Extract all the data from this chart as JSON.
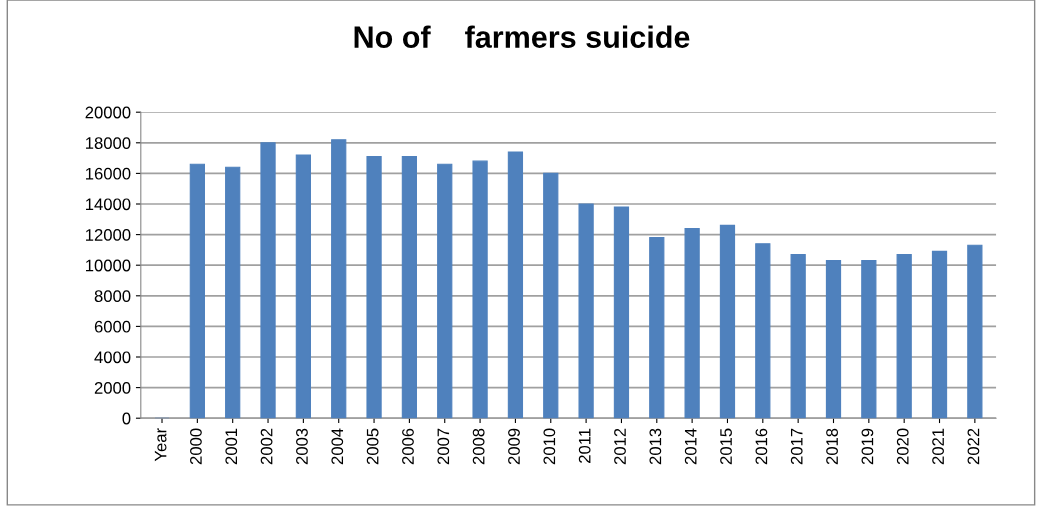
{
  "chart_data": {
    "type": "bar",
    "title": "No of    farmers suicide",
    "categories": [
      "Year",
      "2000",
      "2001",
      "2002",
      "2003",
      "2004",
      "2005",
      "2006",
      "2007",
      "2008",
      "2009",
      "2010",
      "2011",
      "2012",
      "2013",
      "2014",
      "2015",
      "2016",
      "2017",
      "2018",
      "2019",
      "2020",
      "2021",
      "2022"
    ],
    "values": [
      0,
      16600,
      16400,
      18000,
      17200,
      18200,
      17100,
      17100,
      16600,
      16800,
      17400,
      16000,
      14000,
      13800,
      11800,
      12400,
      12600,
      11400,
      10700,
      10300,
      10300,
      10700,
      10900,
      11300
    ],
    "color": "#4f81bd",
    "ylim": [
      0,
      20000
    ],
    "yticks": [
      0,
      2000,
      4000,
      6000,
      8000,
      10000,
      12000,
      14000,
      16000,
      18000,
      20000
    ],
    "grid": "y",
    "legend": false
  }
}
